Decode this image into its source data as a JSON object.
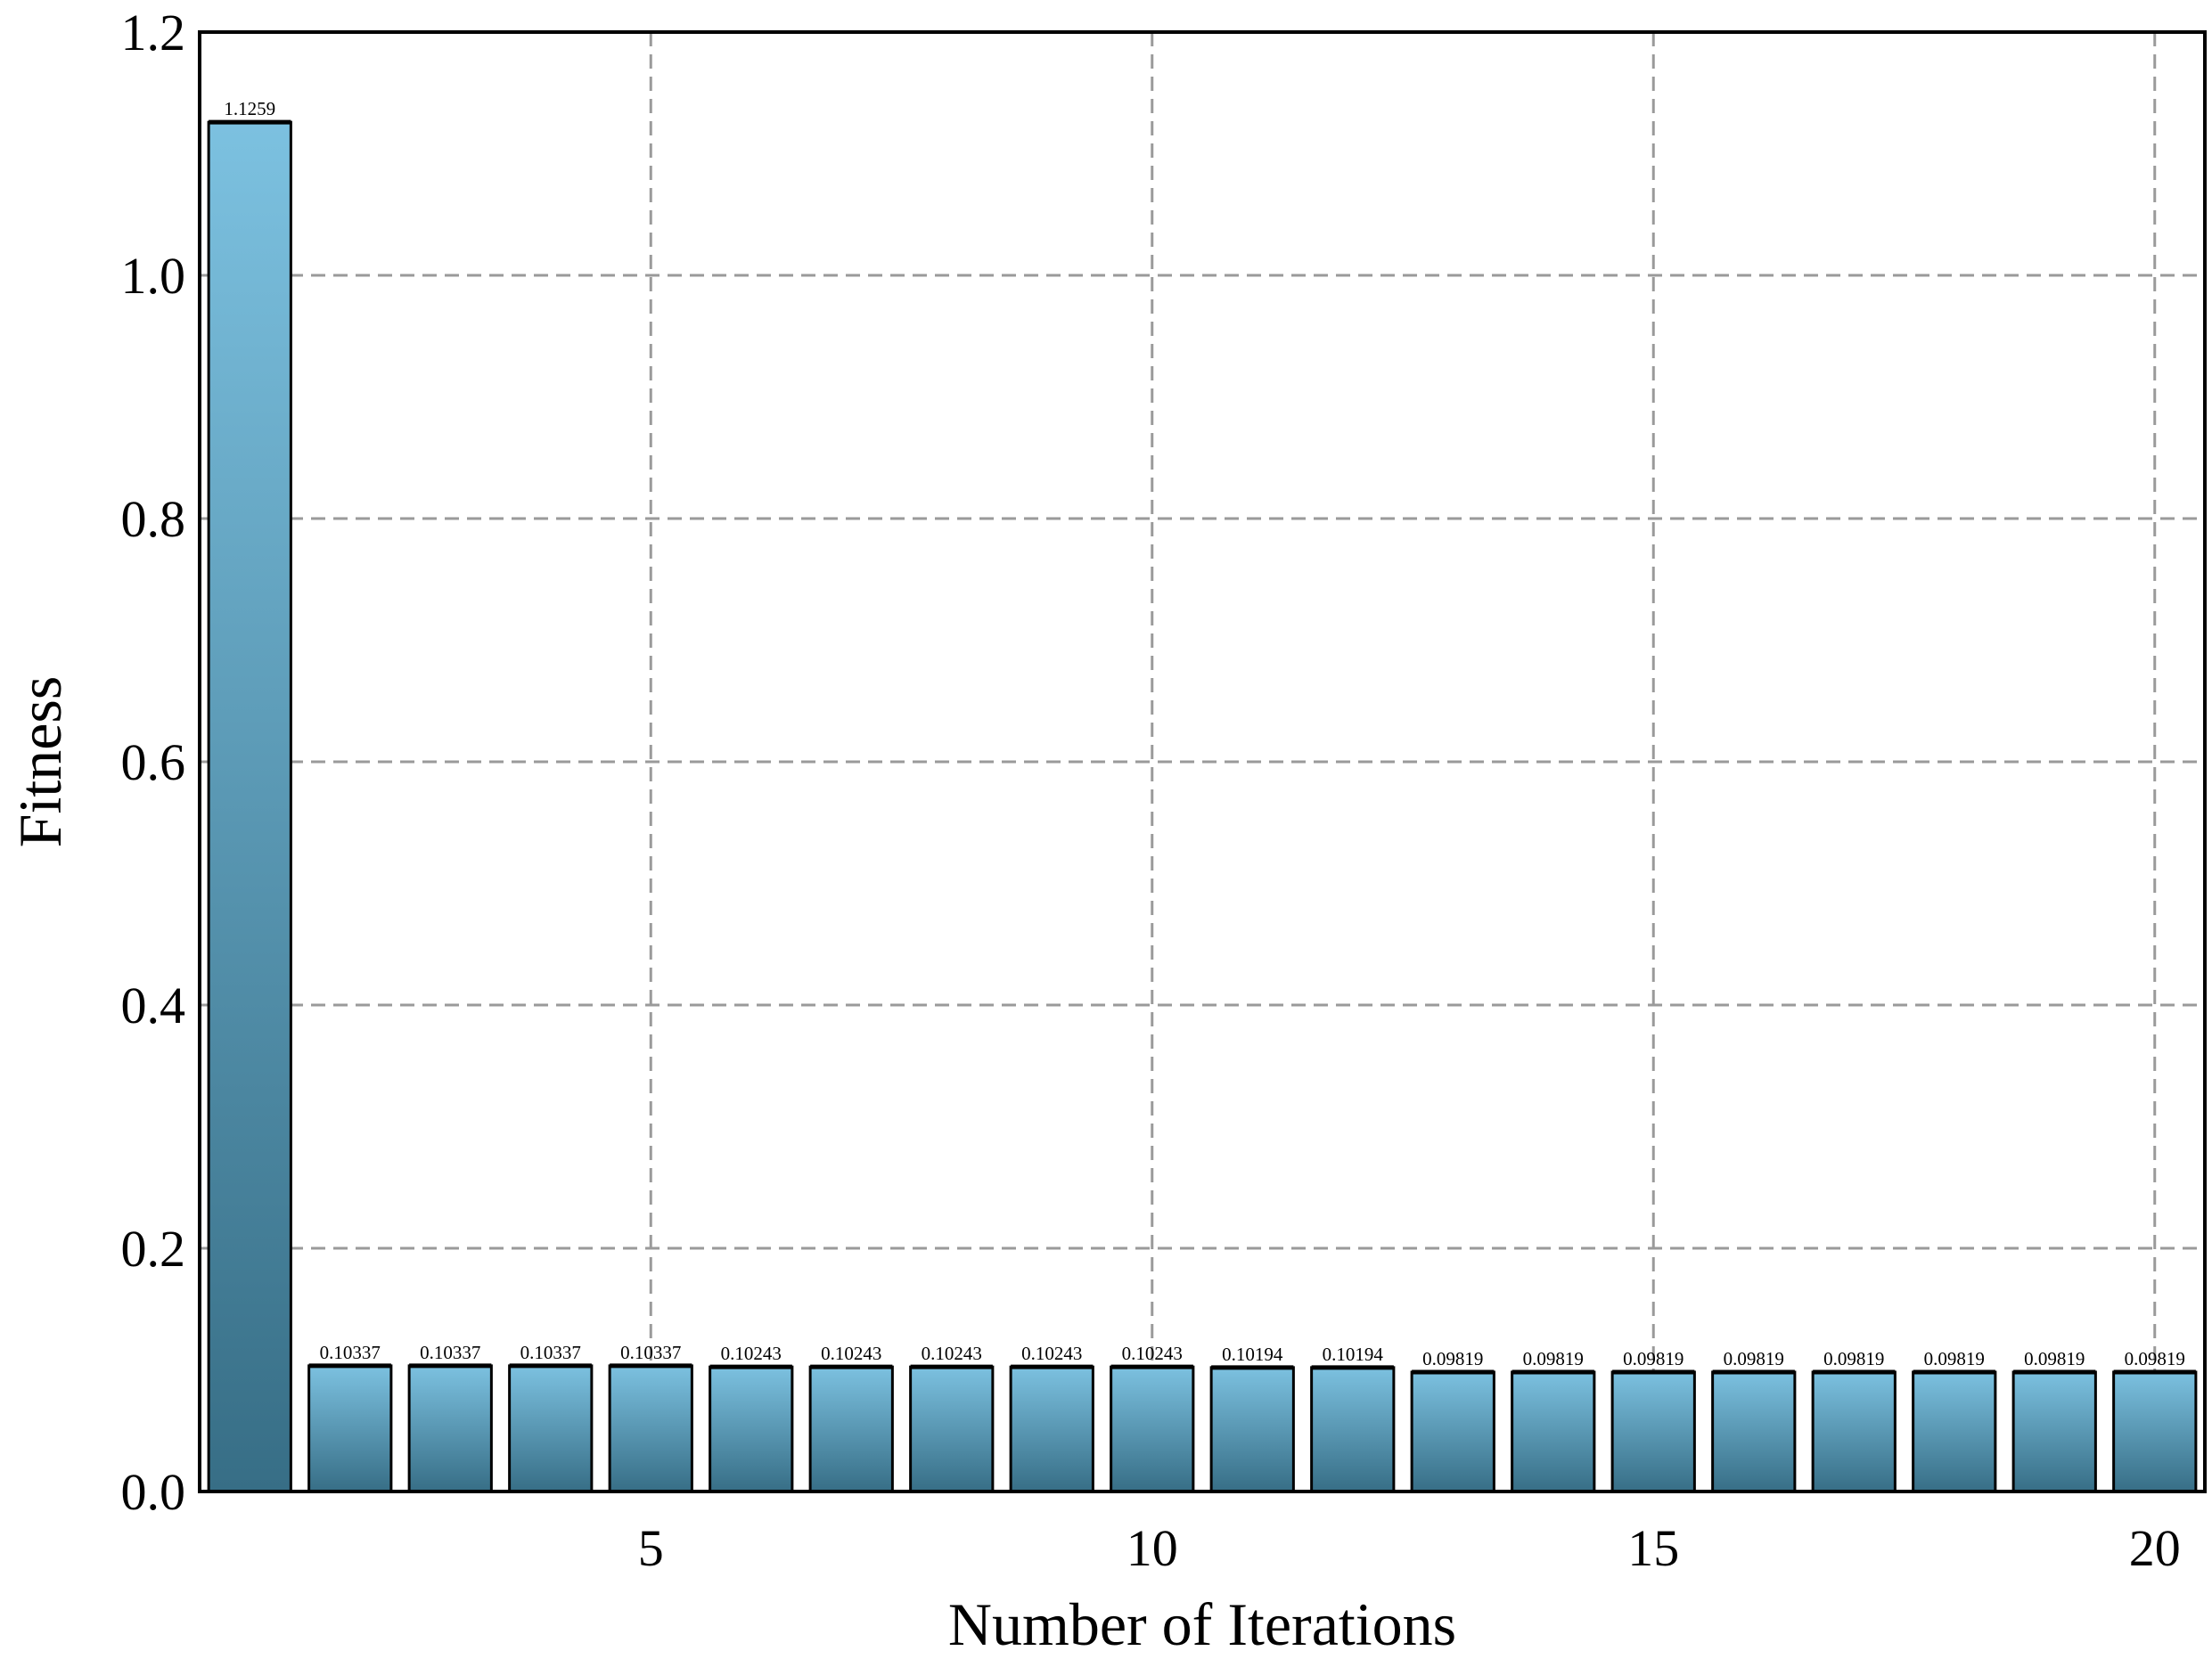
{
  "chart_data": {
    "type": "bar",
    "xlabel": "Number of Iterations",
    "ylabel": "Fitness",
    "ylim": [
      0,
      1.2
    ],
    "xlim": [
      0.5,
      20.5
    ],
    "yticks": [
      0.0,
      0.2,
      0.4,
      0.6,
      0.8,
      1.0,
      1.2
    ],
    "ytick_labels": [
      "0.0",
      "0.2",
      "0.4",
      "0.6",
      "0.8",
      "1.0",
      "1.2"
    ],
    "xticks": [
      5,
      10,
      15,
      20
    ],
    "xtick_labels": [
      "5",
      "10",
      "15",
      "20"
    ],
    "grid": true,
    "x": [
      1,
      2,
      3,
      4,
      5,
      6,
      7,
      8,
      9,
      10,
      11,
      12,
      13,
      14,
      15,
      16,
      17,
      18,
      19,
      20
    ],
    "values": [
      1.1259,
      0.10337,
      0.10337,
      0.10337,
      0.10337,
      0.10243,
      0.10243,
      0.10243,
      0.10243,
      0.10243,
      0.10194,
      0.10194,
      0.09819,
      0.09819,
      0.09819,
      0.09819,
      0.09819,
      0.09819,
      0.09819,
      0.09819
    ],
    "data_labels": [
      "1.1259",
      "0.10337",
      "0.10337",
      "0.10337",
      "0.10337",
      "0.10243",
      "0.10243",
      "0.10243",
      "0.10243",
      "0.10243",
      "0.10194",
      "0.10194",
      "0.09819",
      "0.09819",
      "0.09819",
      "0.09819",
      "0.09819",
      "0.09819",
      "0.09819",
      "0.09819"
    ],
    "colors": {
      "bar_top": "#7cc1e0",
      "bar_bottom": "#376e86",
      "edge": "#000000",
      "grid": "#9a9a9a"
    }
  }
}
